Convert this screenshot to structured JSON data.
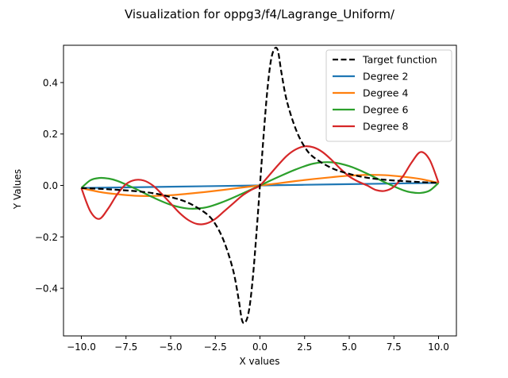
{
  "chart_data": {
    "type": "line",
    "title": "Visualization for oppg3/f4/Lagrange_Uniform/",
    "xlabel": "X values",
    "ylabel": "Y Values",
    "xlim": [
      -11.0,
      11.0
    ],
    "ylim": [
      -0.585,
      0.545
    ],
    "xticks": [
      -10.0,
      -7.5,
      -5.0,
      -2.5,
      0.0,
      2.5,
      5.0,
      7.5,
      10.0
    ],
    "xtick_labels": [
      "−10.0",
      "−7.5",
      "−5.0",
      "−2.5",
      "0.0",
      "2.5",
      "5.0",
      "7.5",
      "10.0"
    ],
    "yticks": [
      -0.4,
      -0.2,
      0.0,
      0.2,
      0.4
    ],
    "ytick_labels": [
      "−0.4",
      "−0.2",
      "0.0",
      "0.2",
      "0.4"
    ],
    "grid": false,
    "legend_position": "upper right",
    "series": [
      {
        "name": "Target function",
        "color": "#000000",
        "dash": "dashed",
        "x": [
          -10,
          -9,
          -8,
          -7,
          -6,
          -5,
          -4,
          -3,
          -2.5,
          -2,
          -1.5,
          -1.2,
          -1.0,
          -0.8,
          -0.6,
          -0.4,
          -0.2,
          0,
          0.2,
          0.4,
          0.6,
          0.8,
          1.0,
          1.2,
          1.5,
          2,
          2.5,
          3,
          4,
          5,
          6,
          7,
          8,
          9,
          10
        ],
        "y": [
          -0.01,
          -0.013,
          -0.017,
          -0.022,
          -0.03,
          -0.045,
          -0.068,
          -0.11,
          -0.15,
          -0.22,
          -0.33,
          -0.44,
          -0.525,
          -0.53,
          -0.48,
          -0.36,
          -0.19,
          0.0,
          0.19,
          0.36,
          0.48,
          0.53,
          0.525,
          0.44,
          0.33,
          0.22,
          0.15,
          0.11,
          0.068,
          0.045,
          0.03,
          0.022,
          0.017,
          0.013,
          0.01
        ]
      },
      {
        "name": "Degree 2",
        "color": "#1f77b4",
        "dash": "solid",
        "x": [
          -10,
          -5,
          0,
          5,
          10
        ],
        "y": [
          -0.01,
          -0.005,
          0.0,
          0.005,
          0.01
        ]
      },
      {
        "name": "Degree 4",
        "color": "#ff7f0e",
        "dash": "solid",
        "x": [
          -10,
          -9,
          -8,
          -7,
          -6,
          -5,
          -4,
          -3,
          -2,
          -1,
          0,
          1,
          2,
          3,
          4,
          5,
          6,
          7,
          8,
          9,
          10
        ],
        "y": [
          -0.01,
          -0.025,
          -0.034,
          -0.04,
          -0.041,
          -0.038,
          -0.032,
          -0.025,
          -0.017,
          -0.008,
          0.0,
          0.008,
          0.017,
          0.025,
          0.032,
          0.038,
          0.041,
          0.04,
          0.034,
          0.025,
          0.01
        ]
      },
      {
        "name": "Degree 6",
        "color": "#2ca02c",
        "dash": "solid",
        "x": [
          -10,
          -9.5,
          -9,
          -8.5,
          -8,
          -7,
          -6,
          -5,
          -4,
          -3,
          -2,
          -1,
          0,
          1,
          2,
          3,
          4,
          5,
          6,
          7,
          8,
          8.5,
          9,
          9.5,
          10
        ],
        "y": [
          -0.01,
          0.02,
          0.029,
          0.027,
          0.018,
          -0.012,
          -0.046,
          -0.075,
          -0.09,
          -0.085,
          -0.062,
          -0.032,
          0.0,
          0.032,
          0.062,
          0.085,
          0.09,
          0.075,
          0.046,
          0.012,
          -0.018,
          -0.027,
          -0.029,
          -0.02,
          0.01
        ]
      },
      {
        "name": "Degree 8",
        "color": "#d62728",
        "dash": "solid",
        "x": [
          -10,
          -9.5,
          -9,
          -8.5,
          -8,
          -7.5,
          -7,
          -6.5,
          -6,
          -5.5,
          -5,
          -4.5,
          -4,
          -3.5,
          -3,
          -2.5,
          -2,
          -1.5,
          -1,
          -0.5,
          0,
          0.5,
          1,
          1.5,
          2,
          2.5,
          3,
          3.5,
          4,
          4.5,
          5,
          5.5,
          6,
          6.5,
          7,
          7.5,
          8,
          8.5,
          9,
          9.5,
          10
        ],
        "y": [
          -0.01,
          -0.1,
          -0.13,
          -0.09,
          -0.035,
          0.005,
          0.021,
          0.019,
          0.0,
          -0.033,
          -0.07,
          -0.107,
          -0.135,
          -0.15,
          -0.148,
          -0.13,
          -0.1,
          -0.07,
          -0.04,
          -0.018,
          0.0,
          0.038,
          0.078,
          0.115,
          0.14,
          0.152,
          0.148,
          0.13,
          0.1,
          0.065,
          0.035,
          0.015,
          0.0,
          -0.018,
          -0.021,
          -0.005,
          0.035,
          0.09,
          0.13,
          0.1,
          0.01
        ]
      }
    ]
  }
}
